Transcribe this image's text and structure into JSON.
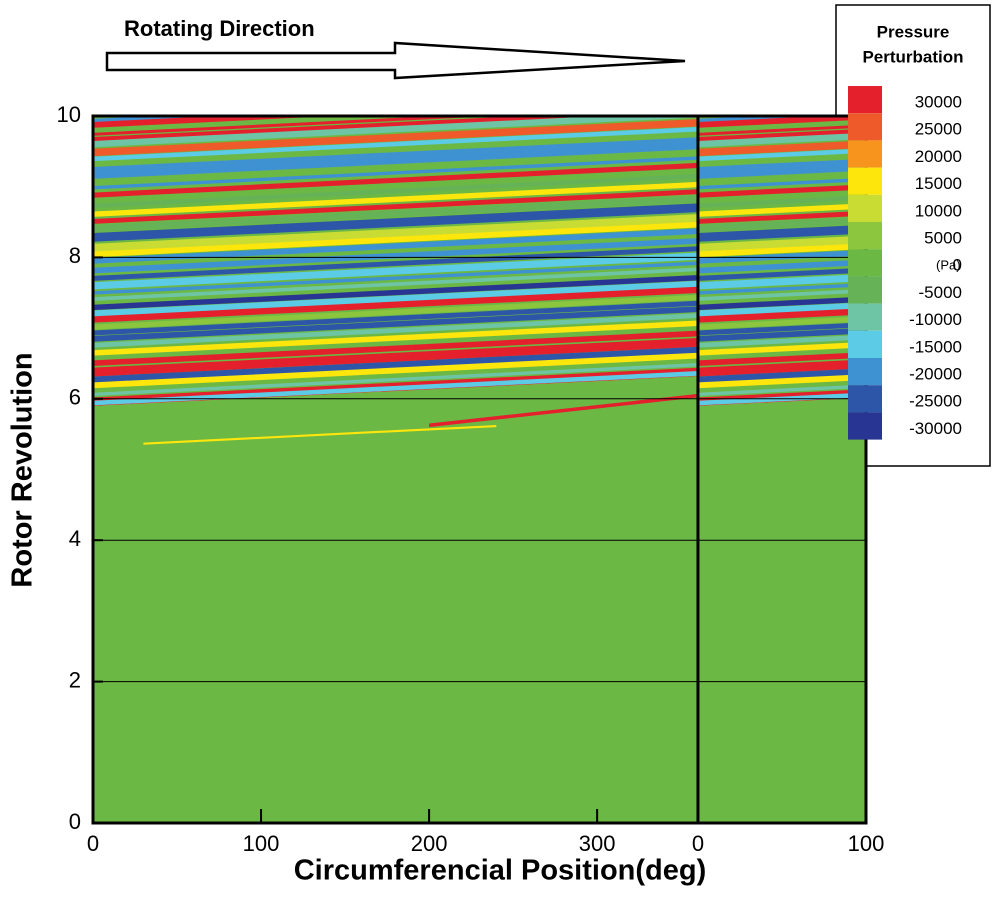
{
  "chart_data": {
    "type": "contour",
    "annotation": "Rotating Direction",
    "xlabel": "Circumferencial Position(deg)",
    "ylabel": "Rotor Revolution",
    "xlim": [
      0,
      460
    ],
    "xticks": [
      0,
      100,
      200,
      300,
      {
        "value": 360,
        "label": "0"
      },
      {
        "value": 460,
        "label": "100"
      }
    ],
    "ylim": [
      0,
      10
    ],
    "yticks": [
      0,
      2,
      4,
      6,
      8,
      10
    ],
    "grid": true,
    "vline": 360,
    "background_color": "#6cb845",
    "legend": {
      "title": [
        "Pressure",
        "Perturbation"
      ],
      "levels": [
        30000,
        25000,
        20000,
        15000,
        10000,
        5000,
        0,
        -5000,
        -10000,
        -15000,
        -20000,
        -25000,
        -30000
      ],
      "colors": [
        "#e3202b",
        "#ee5a2a",
        "#f7941e",
        "#fde60b",
        "#c9dc34",
        "#8cc63f",
        "#6cb845",
        "#66b257",
        "#6ec5a6",
        "#5ccbe6",
        "#3f92d2",
        "#2d56a8",
        "#283593"
      ],
      "unit": "(Pa)"
    }
  }
}
